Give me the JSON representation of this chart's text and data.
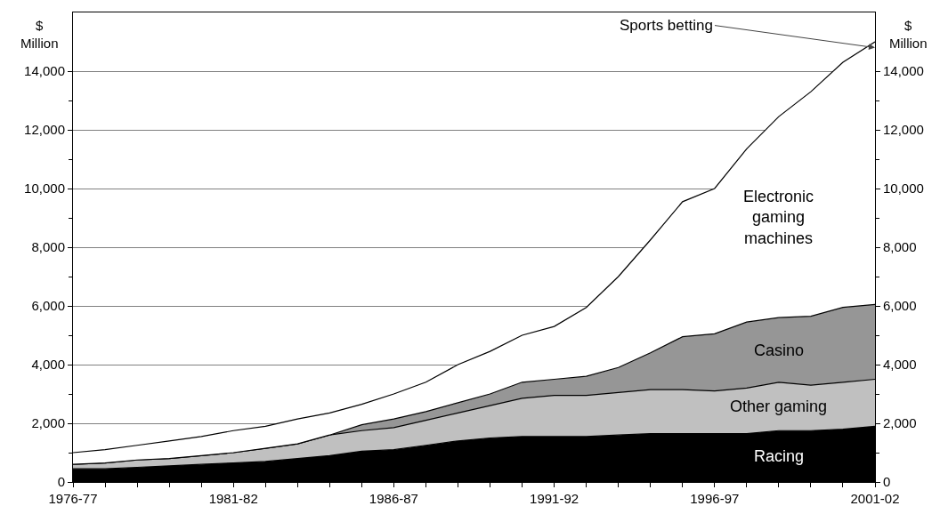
{
  "chart_data": {
    "type": "area",
    "stacked": true,
    "ylabel": "$\nMillion",
    "y2label": "$\nMillion",
    "categories": [
      "1976-77",
      null,
      null,
      null,
      null,
      "1981-82",
      null,
      null,
      null,
      null,
      "1986-87",
      null,
      null,
      null,
      null,
      "1991-92",
      null,
      null,
      null,
      null,
      "1996-97",
      null,
      null,
      null,
      null,
      "2001-02"
    ],
    "series": [
      {
        "name": "Racing",
        "color": "#000000",
        "values": [
          450,
          450,
          500,
          550,
          600,
          650,
          700,
          800,
          900,
          1050,
          1100,
          1250,
          1400,
          1500,
          1550,
          1550,
          1550,
          1600,
          1650,
          1650,
          1650,
          1650,
          1750,
          1750,
          1800,
          1900
        ]
      },
      {
        "name": "Other gaming",
        "color": "#c0c0c0",
        "values": [
          150,
          200,
          250,
          250,
          300,
          350,
          450,
          500,
          700,
          700,
          750,
          850,
          950,
          1100,
          1300,
          1400,
          1400,
          1450,
          1500,
          1500,
          1450,
          1550,
          1650,
          1550,
          1600,
          1600
        ]
      },
      {
        "name": "Casino",
        "color": "#969696",
        "values": [
          0,
          0,
          0,
          0,
          0,
          0,
          0,
          0,
          0,
          200,
          300,
          300,
          350,
          400,
          550,
          550,
          650,
          850,
          1250,
          1800,
          1950,
          2250,
          2200,
          2350,
          2550,
          2550
        ]
      },
      {
        "name": "Electronic gaming machines",
        "color": "#ffffff",
        "values": [
          400,
          450,
          500,
          600,
          650,
          750,
          750,
          850,
          750,
          700,
          850,
          1000,
          1300,
          1450,
          1600,
          1800,
          2350,
          3100,
          3850,
          4600,
          4950,
          5900,
          6850,
          7650,
          8350,
          8950
        ]
      }
    ],
    "ylim": [
      0,
      16000
    ],
    "yticks": [
      {
        "value": 0,
        "label": "0"
      },
      {
        "value": 2000,
        "label": "2,000"
      },
      {
        "value": 4000,
        "label": "4,000"
      },
      {
        "value": 6000,
        "label": "6,000"
      },
      {
        "value": 8000,
        "label": "8,000"
      },
      {
        "value": 10000,
        "label": "10,000"
      },
      {
        "value": 12000,
        "label": "12,000"
      },
      {
        "value": 14000,
        "label": "14,000"
      }
    ],
    "y2lim": [
      0,
      16000
    ],
    "y2ticks": [
      {
        "value": 0,
        "label": "0"
      },
      {
        "value": 2000,
        "label": "2,000"
      },
      {
        "value": 4000,
        "label": "4,000"
      },
      {
        "value": 6000,
        "label": "6,000"
      },
      {
        "value": 8000,
        "label": "8,000"
      },
      {
        "value": 10000,
        "label": "10,000"
      },
      {
        "value": 12000,
        "label": "12,000"
      },
      {
        "value": 14000,
        "label": "14,000"
      }
    ],
    "annotations": [
      {
        "text": "Sports betting",
        "x": "2001-02",
        "y": 14800
      }
    ],
    "grid": "y",
    "legend": false
  }
}
